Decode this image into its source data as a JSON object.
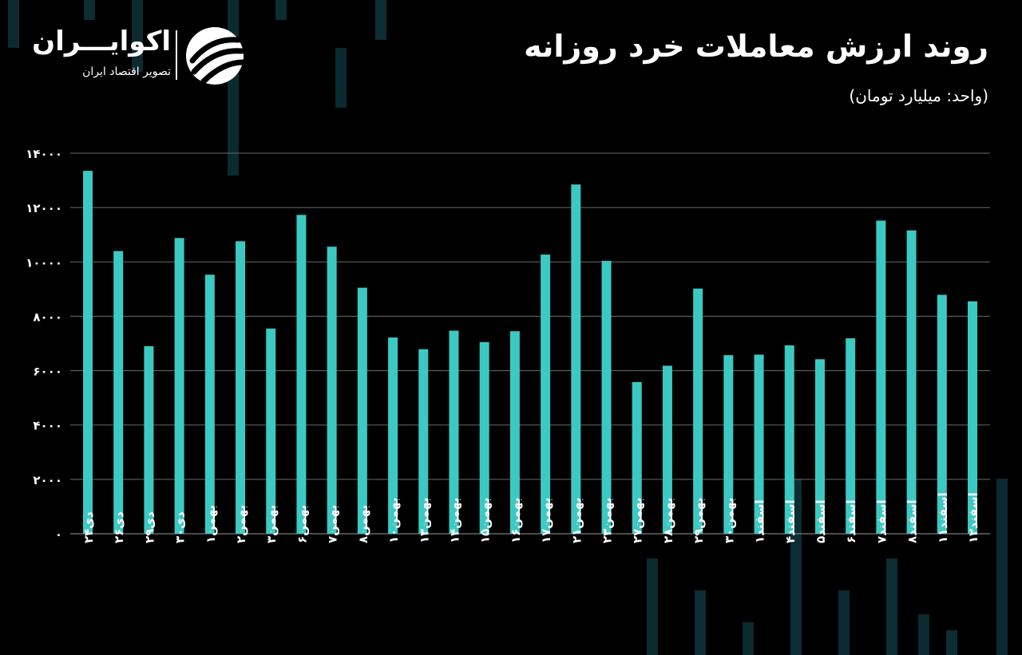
{
  "header": {
    "title": "روند ارزش معاملات خرد روزانه",
    "subtitle": "(واحد: میلیارد تومان)"
  },
  "logo": {
    "name": "اکوایـــران",
    "tagline": "تصویر اقتصاد ایران"
  },
  "colors": {
    "background": "#000000",
    "bar": "#3cc9c3",
    "grid": "#6b6b6b",
    "text": "#ffffff"
  },
  "chart_data": {
    "type": "bar",
    "title": "روند ارزش معاملات خرد روزانه",
    "ylabel": "",
    "xlabel": "",
    "ylim": [
      0,
      14000
    ],
    "yticks": [
      "۰",
      "۲۰۰۰",
      "۴۰۰۰",
      "۶۰۰۰",
      "۸۰۰۰",
      "۱۰۰۰۰",
      "۱۲۰۰۰",
      "۱۴۰۰۰"
    ],
    "grid": true,
    "categories": [
      "دی۲۴",
      "دی۲۶",
      "دی۲۹",
      "دی۳۰",
      "بهمن۱",
      "بهمن۲",
      "بهمن۳",
      "بهمن۶",
      "بهمن۷",
      "بهمن۸",
      "بهمن۱۰",
      "بهمن۱۳",
      "بهمن۱۴",
      "بهمن۱۵",
      "بهمن۱۶",
      "بهمن۱۷",
      "بهمن۲۱",
      "بهمن۲۳",
      "بهمن۲۷",
      "بهمن۲۸",
      "بهمن۲۹",
      "بهمن۳۰",
      "اسفند۱",
      "اسفند۴",
      "اسفند۵",
      "اسفند۶",
      "اسفند۷",
      "اسفند۸",
      "اسفند۱۱",
      "اسفند۱۲"
    ],
    "values": [
      13350,
      10400,
      6900,
      10880,
      9530,
      10760,
      7550,
      11730,
      10560,
      9050,
      7220,
      6790,
      7470,
      7050,
      7450,
      10270,
      12850,
      10040,
      5580,
      6180,
      9020,
      6570,
      6590,
      6930,
      6420,
      7190,
      11520,
      11160,
      8790,
      8550
    ]
  }
}
